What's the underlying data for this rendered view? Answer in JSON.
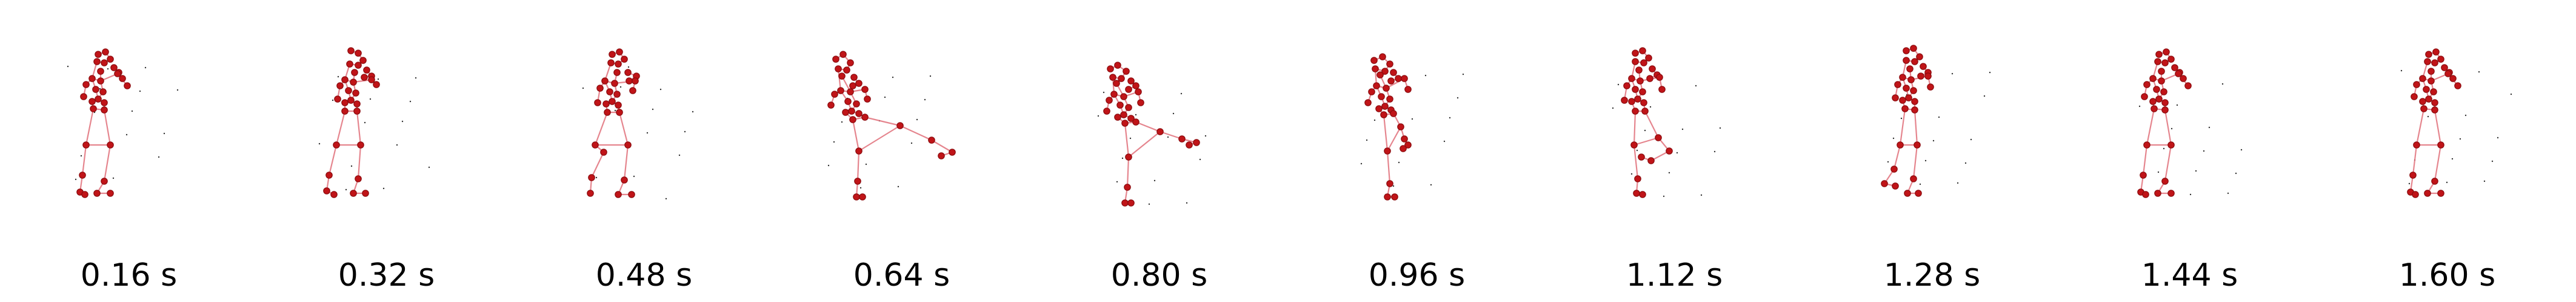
{
  "figure": {
    "frames": [
      {
        "time": "0.16 s",
        "pose": "standing"
      },
      {
        "time": "0.32 s",
        "pose": "standing-crossed"
      },
      {
        "time": "0.48 s",
        "pose": "knee-raise"
      },
      {
        "time": "0.64 s",
        "pose": "leg-extended-forward"
      },
      {
        "time": "0.80 s",
        "pose": "leg-extended-side"
      },
      {
        "time": "0.96 s",
        "pose": "single-leg-stand"
      },
      {
        "time": "1.12 s",
        "pose": "knee-bent-back"
      },
      {
        "time": "1.28 s",
        "pose": "knee-raise-back"
      },
      {
        "time": "1.44 s",
        "pose": "standing"
      },
      {
        "time": "1.60 s",
        "pose": "standing"
      }
    ]
  },
  "colors": {
    "joint": "#c01418",
    "bone": "#e0707a",
    "label": "#000000",
    "background": "#ffffff"
  }
}
